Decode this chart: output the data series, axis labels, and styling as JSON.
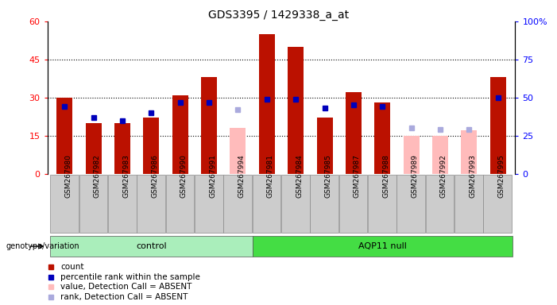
{
  "title": "GDS3395 / 1429338_a_at",
  "samples": [
    "GSM267980",
    "GSM267982",
    "GSM267983",
    "GSM267986",
    "GSM267990",
    "GSM267991",
    "GSM267994",
    "GSM267981",
    "GSM267984",
    "GSM267985",
    "GSM267987",
    "GSM267988",
    "GSM267989",
    "GSM267992",
    "GSM267993",
    "GSM267995"
  ],
  "groups": [
    "control",
    "control",
    "control",
    "control",
    "control",
    "control",
    "control",
    "AQP11 null",
    "AQP11 null",
    "AQP11 null",
    "AQP11 null",
    "AQP11 null",
    "AQP11 null",
    "AQP11 null",
    "AQP11 null",
    "AQP11 null"
  ],
  "count_values": [
    30,
    20,
    20,
    22,
    31,
    38,
    null,
    55,
    50,
    22,
    32,
    28,
    15,
    null,
    null,
    38
  ],
  "rank_values": [
    44,
    37,
    35,
    40,
    47,
    47,
    null,
    49,
    49,
    43,
    45,
    44,
    null,
    null,
    null,
    50
  ],
  "absent_value": [
    null,
    null,
    null,
    null,
    null,
    null,
    18,
    null,
    null,
    null,
    null,
    null,
    15,
    15,
    17,
    null
  ],
  "absent_rank": [
    null,
    null,
    null,
    null,
    null,
    null,
    42,
    null,
    null,
    null,
    null,
    null,
    null,
    null,
    null,
    null
  ],
  "absent_rank_12": [
    null,
    null,
    null,
    null,
    null,
    null,
    null,
    null,
    null,
    null,
    null,
    null,
    30,
    29,
    29,
    null
  ],
  "control_count": 7,
  "aqp11_count": 9,
  "ylim_left": [
    0,
    60
  ],
  "ylim_right": [
    0,
    100
  ],
  "yticks_left": [
    0,
    15,
    30,
    45,
    60
  ],
  "ytick_labels_left": [
    "0",
    "15",
    "30",
    "45",
    "60"
  ],
  "yticks_right": [
    0,
    25,
    50,
    75,
    100
  ],
  "ytick_labels_right": [
    "0",
    "25",
    "50",
    "75",
    "100%"
  ],
  "bar_color": "#bb1100",
  "rank_color": "#0000bb",
  "absent_bar_color": "#ffbbbb",
  "absent_rank_color": "#aaaadd",
  "bg_color": "#cccccc",
  "control_group_color": "#aaeebb",
  "aqp11_group_color": "#44dd44",
  "bar_width": 0.55,
  "legend_items": [
    {
      "color": "#bb1100",
      "label": "count"
    },
    {
      "color": "#0000bb",
      "label": "percentile rank within the sample"
    },
    {
      "color": "#ffbbbb",
      "label": "value, Detection Call = ABSENT"
    },
    {
      "color": "#aaaadd",
      "label": "rank, Detection Call = ABSENT"
    }
  ]
}
